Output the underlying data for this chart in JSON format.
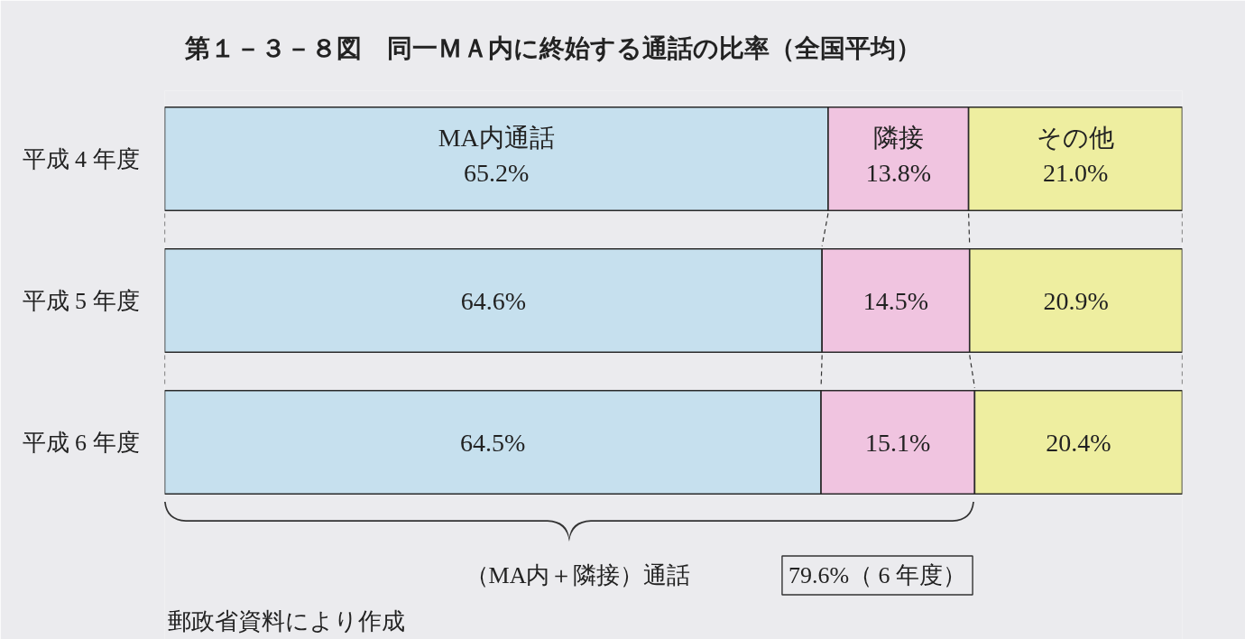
{
  "chart_data": {
    "type": "bar",
    "orientation": "horizontal",
    "stacked": true,
    "title": "第１－３－８図　同一ＭＡ内に終始する通話の比率（全国平均）",
    "categories": [
      "平成 4 年度",
      "平成 5 年度",
      "平成 6 年度"
    ],
    "series": [
      {
        "name": "MA内通話",
        "color": "#c6e0ee",
        "values": [
          65.2,
          64.6,
          64.5
        ],
        "value_labels": [
          "65.2%",
          "64.6%",
          "64.5%"
        ]
      },
      {
        "name": "隣接",
        "color": "#f0c4e0",
        "values": [
          13.8,
          14.5,
          15.1
        ],
        "value_labels": [
          "13.8%",
          "14.5%",
          "15.1%"
        ]
      },
      {
        "name": "その他",
        "color": "#eeeea0",
        "values": [
          21.0,
          20.9,
          20.4
        ],
        "value_labels": [
          "21.0%",
          "20.9%",
          "20.4%"
        ]
      }
    ],
    "xlim": [
      0,
      100
    ],
    "tick_labels": "y",
    "annotations": [
      "（MA内＋隣接）通話",
      "79.6%（ 6 年度）",
      "郵政省資料により作成"
    ]
  }
}
